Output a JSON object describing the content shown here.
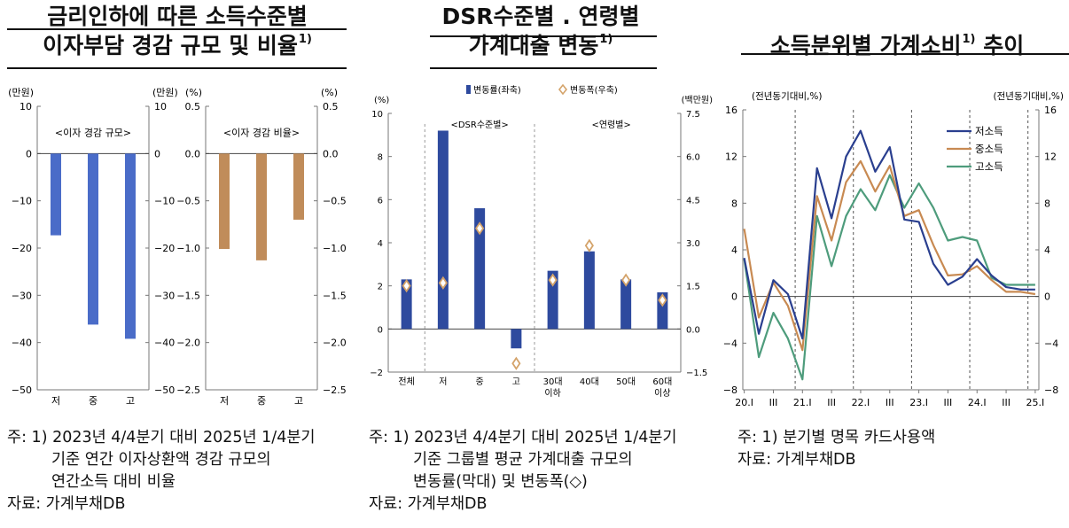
{
  "titles": {
    "p1": {
      "l1": "금리인하에 따른 소득수준별",
      "l2": "이자부담 경감 규모 및 비율",
      "sup": "1)"
    },
    "p2": {
      "l1": "DSR수준별 . 연령별",
      "l2": "가계대출 변동",
      "sup": "1)"
    },
    "p3": {
      "l1": "소득분위별 가계소비",
      "sup": "1)",
      "l1b": " 추이"
    }
  },
  "notes": {
    "p1": {
      "l1": "주: 1) 2023년 4/4분기 대비 2025년 1/4분기",
      "l2": "기준 연간 이자상환액 경감 규모의",
      "l3": "연간소득 대비 비율",
      "src": "자료: 가계부채DB"
    },
    "p2": {
      "l1": "주: 1) 2023년 4/4분기 대비 2025년 1/4분기",
      "l2": "기준 그룹별 평균 가계대출 규모의",
      "l3": "변동률(막대) 및 변동폭(◇)",
      "src": "자료: 가계부채DB"
    },
    "p3": {
      "l1": "주: 1) 분기별 명목 카드사용액",
      "src": "자료: 가계부채DB"
    }
  },
  "chart_data": [
    {
      "type": "bar",
      "unit": "(만원)",
      "unit_right": "(만원)",
      "inner_label": "<이자 경감 규모>",
      "categories": [
        "저",
        "중",
        "고"
      ],
      "values": [
        -17.3,
        -36.2,
        -39.2
      ],
      "ylim": [
        -50,
        10
      ],
      "yticks": [
        "10",
        "0",
        "-10",
        "-20",
        "-30",
        "-40",
        "-50"
      ],
      "color": "#4a6cc8"
    },
    {
      "type": "bar",
      "unit": "(%)",
      "unit_right": "(%)",
      "inner_label": "<이자 경감 비율>",
      "categories": [
        "저",
        "중",
        "고"
      ],
      "values": [
        -1.01,
        -1.13,
        -0.7
      ],
      "ylim": [
        -2.5,
        0.5
      ],
      "yticks": [
        "0.5",
        "0.0",
        "-0.5",
        "-1.0",
        "-1.5",
        "-2.0",
        "-2.5"
      ],
      "color": "#c08c5a"
    },
    {
      "type": "bar",
      "unit_left": "(%)",
      "unit_right": "(백만원)",
      "legend": {
        "bar": "변동률(좌축)",
        "marker": "변동폭(우축)"
      },
      "group_labels": [
        "<DSR수준별>",
        "<연령별>"
      ],
      "categories": [
        [
          "전체"
        ],
        [
          "저"
        ],
        [
          "중"
        ],
        [
          "고"
        ],
        [
          "30대",
          "이하"
        ],
        [
          "40대"
        ],
        [
          "50대"
        ],
        [
          "60대",
          "이상"
        ]
      ],
      "bar_values": [
        2.3,
        9.2,
        5.6,
        -0.9,
        2.7,
        3.6,
        2.3,
        1.7
      ],
      "marker_values": [
        1.5,
        1.6,
        3.5,
        -1.2,
        1.7,
        2.9,
        1.7,
        1.0
      ],
      "ylim_left": [
        -2,
        10
      ],
      "ylim_right": [
        -1.5,
        7.5
      ],
      "yticks_left": [
        "10",
        "8",
        "6",
        "4",
        "2",
        "0",
        "-2"
      ],
      "yticks_right": [
        "7.5",
        "6.0",
        "4.5",
        "3.0",
        "1.5",
        "0.0",
        "-1.5"
      ],
      "bar_color": "#2e4a9e",
      "marker_color": "#d4a36a"
    },
    {
      "type": "line",
      "unit_left": "(전년동기대비,%)",
      "unit_right": "(전년동기대비,%)",
      "ylim": [
        -8,
        16
      ],
      "yticks": [
        "16",
        "12",
        "8",
        "4",
        "0",
        "-4",
        "-8"
      ],
      "x_labels": [
        "20.I",
        "III",
        "21.I",
        "III",
        "22.I",
        "III",
        "23.I",
        "III",
        "24.I",
        "III",
        "25.I"
      ],
      "dividers_at": [
        "20.IV",
        "21.IV",
        "22.IV",
        "23.IV",
        "24.IV"
      ],
      "series": [
        {
          "name": "저소득",
          "color": "#2a3f8f",
          "values": [
            3.3,
            -3.2,
            1.4,
            0.2,
            -3.6,
            11.0,
            6.7,
            12.0,
            14.2,
            10.7,
            12.8,
            6.6,
            6.4,
            2.8,
            1.0,
            1.7,
            3.2,
            1.8,
            0.8,
            0.6,
            0.6
          ]
        },
        {
          "name": "중소득",
          "color": "#c88a52",
          "values": [
            5.8,
            -1.8,
            1.2,
            -0.8,
            -4.6,
            8.6,
            4.8,
            9.8,
            11.6,
            9.0,
            11.2,
            6.9,
            7.4,
            4.4,
            1.8,
            1.9,
            2.6,
            1.4,
            0.4,
            0.4,
            0.2
          ]
        },
        {
          "name": "고소득",
          "color": "#4e9c7c",
          "values": [
            3.2,
            -5.2,
            -1.4,
            -3.6,
            -7.1,
            6.9,
            2.6,
            6.9,
            9.2,
            7.4,
            10.4,
            7.6,
            9.7,
            7.6,
            4.8,
            5.1,
            4.8,
            1.6,
            1.0,
            1.0,
            1.0
          ]
        }
      ]
    }
  ]
}
